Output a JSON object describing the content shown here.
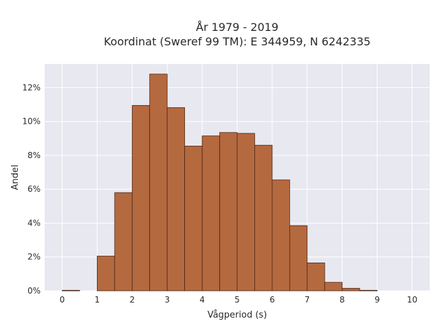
{
  "chart_data": {
    "type": "bar",
    "title_line1": "År 1979 - 2019",
    "title_line2": "Koordinat (Sweref 99 TM): E 344959, N 6242335",
    "xlabel": "Vågperiod (s)",
    "ylabel": "Andel",
    "bin_width": 0.5,
    "bin_starts": [
      0,
      0.5,
      1,
      1.5,
      2,
      2.5,
      3,
      3.5,
      4,
      4.5,
      5,
      5.5,
      6,
      6.5,
      7,
      7.5,
      8,
      8.5,
      9,
      9.5
    ],
    "values": [
      0.0003,
      0,
      0.0205,
      0.058,
      0.1095,
      0.128,
      0.1082,
      0.0855,
      0.0915,
      0.0935,
      0.093,
      0.086,
      0.0655,
      0.0385,
      0.0165,
      0.005,
      0.0015,
      0.0003,
      0,
      0
    ],
    "xlim": [
      -0.5,
      10.5
    ],
    "ylim": [
      0,
      0.134
    ],
    "x_ticks": [
      0,
      1,
      2,
      3,
      4,
      5,
      6,
      7,
      8,
      9,
      10
    ],
    "x_tick_labels": [
      "0",
      "1",
      "2",
      "3",
      "4",
      "5",
      "6",
      "7",
      "8",
      "9",
      "10"
    ],
    "y_ticks": [
      0,
      0.02,
      0.04,
      0.06,
      0.08,
      0.1,
      0.12
    ],
    "y_tick_labels": [
      "0%",
      "2%",
      "4%",
      "6%",
      "8%",
      "10%",
      "12%"
    ],
    "grid": true,
    "colors": {
      "bar_fill": "#b5693f",
      "bar_edge": "#4a2818",
      "plot_background": "#e8e8f0",
      "grid": "#ffffff"
    }
  }
}
